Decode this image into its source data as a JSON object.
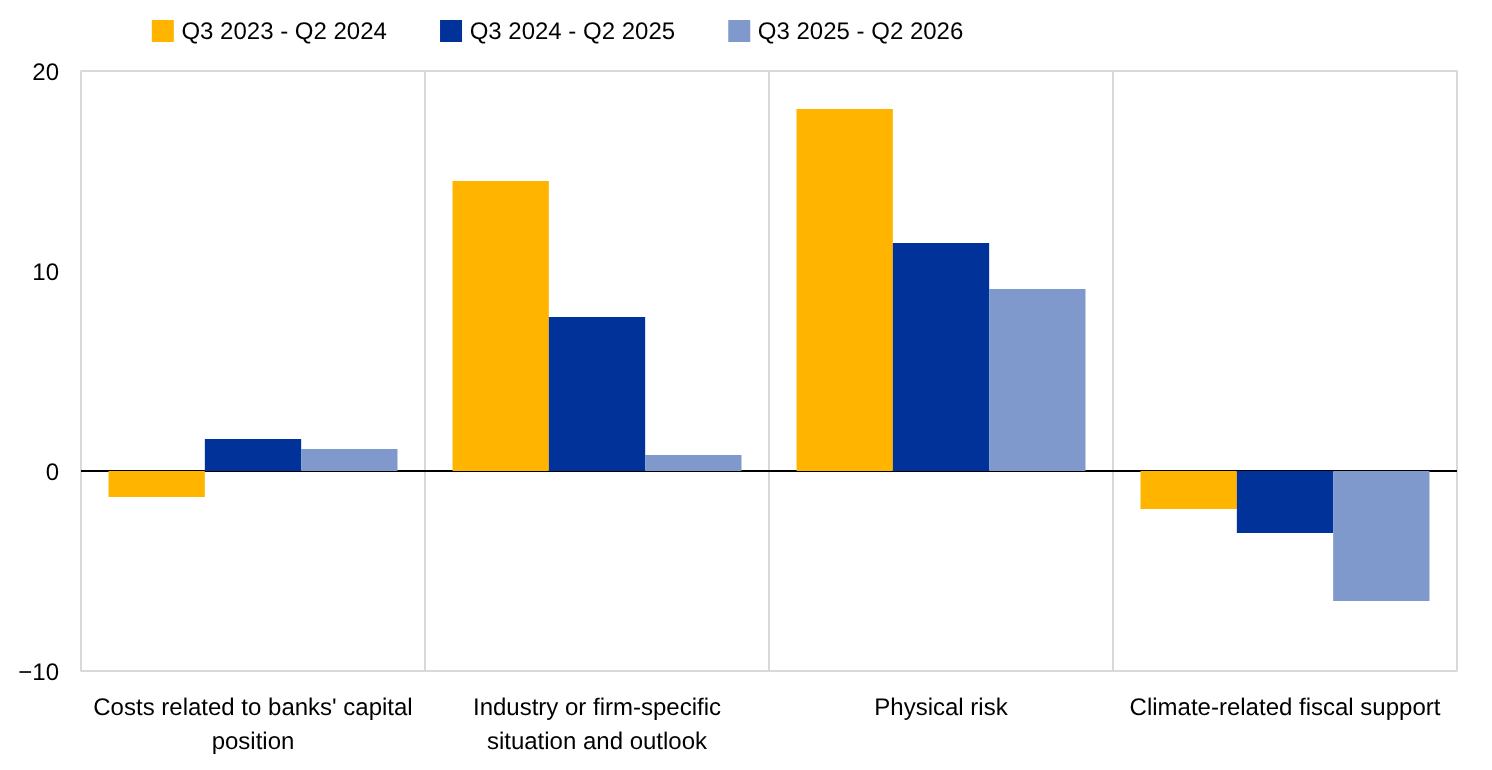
{
  "chart_data": {
    "type": "bar",
    "categories": [
      "Costs related to banks' capital position",
      "Industry or firm-specific situation and outlook",
      "Physical risk",
      "Climate-related fiscal support"
    ],
    "series": [
      {
        "name": "Q3 2023 - Q2 2024",
        "color": "#ffb400",
        "values": [
          -1.3,
          14.5,
          18.1,
          -1.9
        ]
      },
      {
        "name": "Q3 2024 - Q2 2025",
        "color": "#003299",
        "values": [
          1.6,
          7.7,
          11.4,
          -3.1
        ]
      },
      {
        "name": "Q3 2025 - Q2 2026",
        "color": "#7f99cc",
        "values": [
          1.1,
          0.8,
          9.1,
          -6.5
        ]
      }
    ],
    "ylim": [
      -10,
      20
    ],
    "yticks": [
      -10,
      0,
      10,
      20
    ],
    "grid": "x",
    "legend": "top left"
  }
}
